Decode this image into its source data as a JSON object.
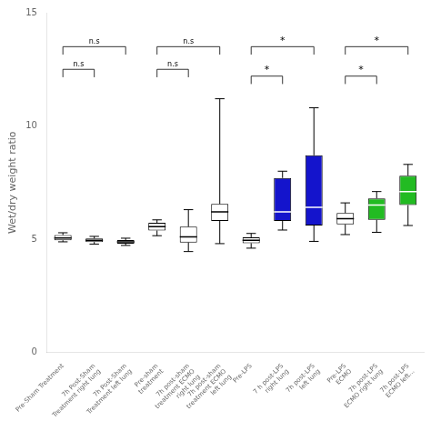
{
  "chart_data": {
    "type": "boxplot",
    "ylabel": "Wet/dry weight ratio",
    "categories": [
      "Pre-Sham Treatment",
      "7h Post-Sham\nTreatment right lung",
      "7h Post-Sham\nTreatment left lung",
      "Pre-sham\ntreatment",
      "7h post-sham\ntreatment ECMO\nright lung",
      "7h post-sham\ntreatment ECMO\nleft lung",
      "Pre-LPS",
      "7 h post-LPS\nright lung",
      "7h post-LPS\nleft lung",
      "Pre-LPS\nECMO",
      "7h post-LPS\nECMO right lung",
      "7h post-LPS\nECMO left..."
    ],
    "median": [
      5.05,
      4.95,
      4.88,
      5.55,
      5.1,
      6.2,
      4.95,
      6.2,
      6.4,
      5.9,
      6.5,
      7.1
    ],
    "q1": [
      4.95,
      4.87,
      4.8,
      5.38,
      4.85,
      5.8,
      4.82,
      5.8,
      5.6,
      5.65,
      5.85,
      6.5
    ],
    "q3": [
      5.18,
      5.03,
      4.96,
      5.72,
      5.55,
      6.55,
      5.08,
      7.7,
      8.7,
      6.15,
      6.8,
      7.8
    ],
    "whislo": [
      4.88,
      4.78,
      4.72,
      5.15,
      4.45,
      4.8,
      4.6,
      5.4,
      4.9,
      5.2,
      5.3,
      5.6
    ],
    "whishi": [
      5.28,
      5.12,
      5.04,
      5.85,
      6.3,
      11.2,
      5.25,
      8.0,
      10.8,
      6.6,
      7.1,
      8.3
    ],
    "colors": [
      "#ffffff",
      "#ffffff",
      "#ffffff",
      "#ffffff",
      "#ffffff",
      "#ffffff",
      "#ffffff",
      "#1414cc",
      "#1414cc",
      "#ffffff",
      "#22bb22",
      "#22bb22"
    ],
    "annotations": [
      {
        "from": "Pre-Sham Treatment",
        "to": "7h Post-Sham\nTreatment right lung",
        "height": 12.5,
        "label": "n.s"
      },
      {
        "from": "Pre-Sham Treatment",
        "to": "7h Post-Sham\nTreatment left lung",
        "height": 13.5,
        "label": "n.s"
      },
      {
        "from": "Pre-sham\ntreatment",
        "to": "7h post-sham\ntreatment ECMO\nright lung",
        "height": 12.5,
        "label": "n.s"
      },
      {
        "from": "Pre-sham\ntreatment",
        "to": "7h post-sham\ntreatment ECMO\nleft lung",
        "height": 13.5,
        "label": "n.s"
      },
      {
        "from": "Pre-LPS",
        "to": "7 h post-LPS\nright lung",
        "height": 12.2,
        "label": "*"
      },
      {
        "from": "Pre-LPS",
        "to": "7h post-LPS\nleft lung",
        "height": 13.5,
        "label": "*"
      },
      {
        "from": "Pre-LPS\nECMO",
        "to": "7h post-LPS\nECMO right lung",
        "height": 12.2,
        "label": "*"
      },
      {
        "from": "Pre-LPS\nECMO",
        "to": "7h post-LPS\nECMO left...",
        "height": 13.5,
        "label": "*"
      }
    ],
    "ylim": [
      0,
      15
    ],
    "yticks": [
      0,
      5,
      10,
      15
    ],
    "grid": false
  }
}
